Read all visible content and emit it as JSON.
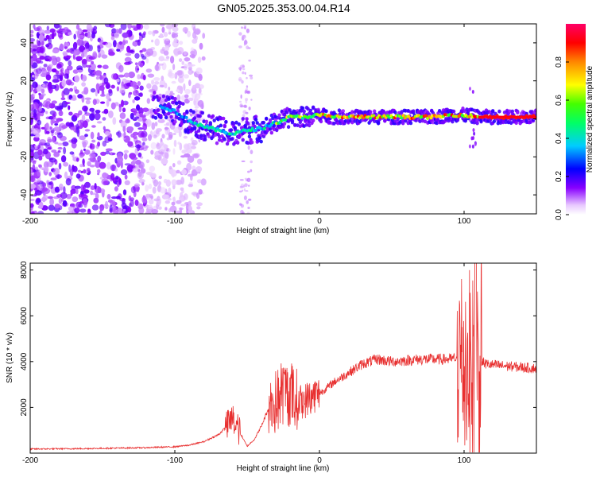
{
  "title": "GN05.2025.353.00.04.R14",
  "chart_data": [
    {
      "type": "heatmap",
      "name": "spectrogram",
      "xlabel": "Height of straight line (km)",
      "ylabel": "Frequency (Hz)",
      "xlim": [
        -200,
        150
      ],
      "ylim": [
        -50,
        50
      ],
      "xticks": [
        "-200",
        "-100",
        "0",
        "100"
      ],
      "xtick_values": [
        -200,
        -100,
        0,
        100
      ],
      "yticks": [
        "-40",
        "-20",
        "0",
        "20",
        "40"
      ],
      "ytick_values": [
        -40,
        -20,
        0,
        20,
        40
      ],
      "colorbar": {
        "label": "Normalized spectral amplitude",
        "range": [
          0,
          1
        ],
        "ticks": [
          "0.0",
          "0.2",
          "0.4",
          "0.6",
          "0.8"
        ],
        "tick_values": [
          0,
          0.2,
          0.4,
          0.6,
          0.8
        ]
      },
      "ridge": {
        "x": [
          -110,
          -100,
          -90,
          -80,
          -70,
          -60,
          -50,
          -40,
          -30,
          -20,
          -10,
          0,
          10,
          20,
          40,
          60,
          80,
          90,
          100,
          110,
          150
        ],
        "y": [
          7,
          4,
          -1,
          -4,
          -6,
          -8,
          -6,
          -5,
          -2,
          1,
          1,
          2,
          1,
          1,
          1,
          1,
          1,
          2,
          2,
          1,
          1
        ]
      },
      "noise_region_x": [
        -200,
        -90
      ]
    },
    {
      "type": "line",
      "name": "snr",
      "xlabel": "Height of straight line (km)",
      "ylabel": "SNR (10 * v/v)",
      "xlim": [
        -200,
        150
      ],
      "ylim": [
        0,
        8300
      ],
      "xticks": [
        "-200",
        "-100",
        "0",
        "100"
      ],
      "xtick_values": [
        -200,
        -100,
        0,
        100
      ],
      "yticks": [
        "2000",
        "4000",
        "6000",
        "8000"
      ],
      "ytick_values": [
        2000,
        4000,
        6000,
        8000
      ],
      "line_color": "#e83030",
      "series": [
        {
          "name": "SNR",
          "x": [
            -200,
            -180,
            -160,
            -140,
            -120,
            -100,
            -90,
            -80,
            -70,
            -65,
            -60,
            -55,
            -50,
            -45,
            -40,
            -35,
            -30,
            -25,
            -20,
            -15,
            -10,
            -5,
            0,
            10,
            20,
            30,
            40,
            50,
            60,
            70,
            80,
            90,
            95,
            100,
            105,
            108,
            110,
            115,
            120,
            130,
            140,
            150
          ],
          "y": [
            180,
            190,
            200,
            220,
            240,
            280,
            350,
            500,
            800,
            1100,
            1500,
            900,
            300,
            600,
            1200,
            2000,
            2200,
            2700,
            2600,
            2200,
            2300,
            2500,
            2600,
            3100,
            3500,
            3900,
            4100,
            4000,
            4050,
            4100,
            4100,
            4100,
            4150,
            4000,
            3600,
            3200,
            4100,
            3900,
            3850,
            3800,
            3750,
            3700
          ]
        }
      ],
      "bursts": [
        {
          "x0": -65,
          "x1": -55,
          "amp": 1400
        },
        {
          "x0": -35,
          "x1": -15,
          "amp": 3000
        },
        {
          "x0": -15,
          "x1": 0,
          "amp": 1600
        },
        {
          "x0": 95,
          "x1": 112,
          "amp": 9000
        }
      ]
    }
  ]
}
